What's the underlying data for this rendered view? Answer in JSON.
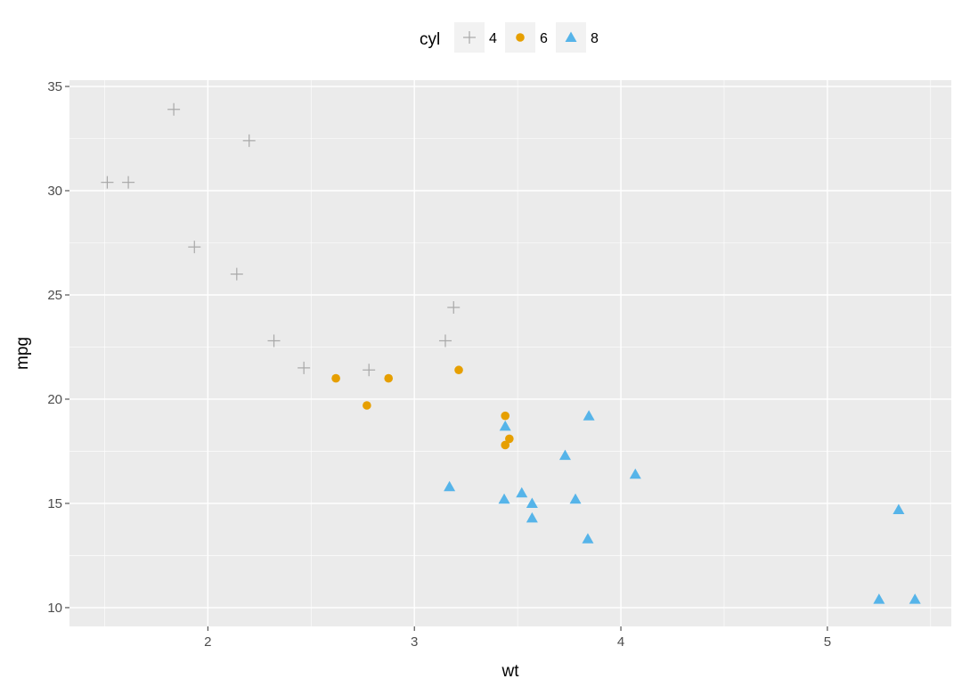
{
  "chart_data": {
    "type": "scatter",
    "xlabel": "wt",
    "ylabel": "mpg",
    "xlim": [
      1.33,
      5.6
    ],
    "ylim": [
      9.1,
      35.3
    ],
    "x_ticks": [
      2,
      3,
      4,
      5
    ],
    "y_ticks": [
      10,
      15,
      20,
      25,
      30,
      35
    ],
    "grid": true,
    "legend": {
      "title": "cyl",
      "position": "top",
      "entries": [
        "4",
        "6",
        "8"
      ]
    },
    "series": [
      {
        "name": "4",
        "shape": "cross",
        "color": "#a8a8a8",
        "points": [
          [
            2.32,
            22.8
          ],
          [
            3.19,
            24.4
          ],
          [
            3.15,
            22.8
          ],
          [
            2.2,
            32.4
          ],
          [
            1.615,
            30.4
          ],
          [
            1.835,
            33.9
          ],
          [
            2.465,
            21.5
          ],
          [
            1.935,
            27.3
          ],
          [
            2.14,
            26.0
          ],
          [
            1.513,
            30.4
          ],
          [
            2.78,
            21.4
          ]
        ]
      },
      {
        "name": "6",
        "shape": "circle",
        "color": "#e69f00",
        "points": [
          [
            2.62,
            21.0
          ],
          [
            2.875,
            21.0
          ],
          [
            3.215,
            21.4
          ],
          [
            3.44,
            19.2
          ],
          [
            3.44,
            17.8
          ],
          [
            3.46,
            18.1
          ],
          [
            2.77,
            19.7
          ]
        ]
      },
      {
        "name": "8",
        "shape": "triangle",
        "color": "#56b4e9",
        "points": [
          [
            3.44,
            18.7
          ],
          [
            3.57,
            14.3
          ],
          [
            4.07,
            16.4
          ],
          [
            3.73,
            17.3
          ],
          [
            3.78,
            15.2
          ],
          [
            5.25,
            10.4
          ],
          [
            5.424,
            10.4
          ],
          [
            5.345,
            14.7
          ],
          [
            3.52,
            15.5
          ],
          [
            3.435,
            15.2
          ],
          [
            3.84,
            13.3
          ],
          [
            3.845,
            19.2
          ],
          [
            3.17,
            15.8
          ],
          [
            3.57,
            15.0
          ]
        ]
      }
    ]
  }
}
